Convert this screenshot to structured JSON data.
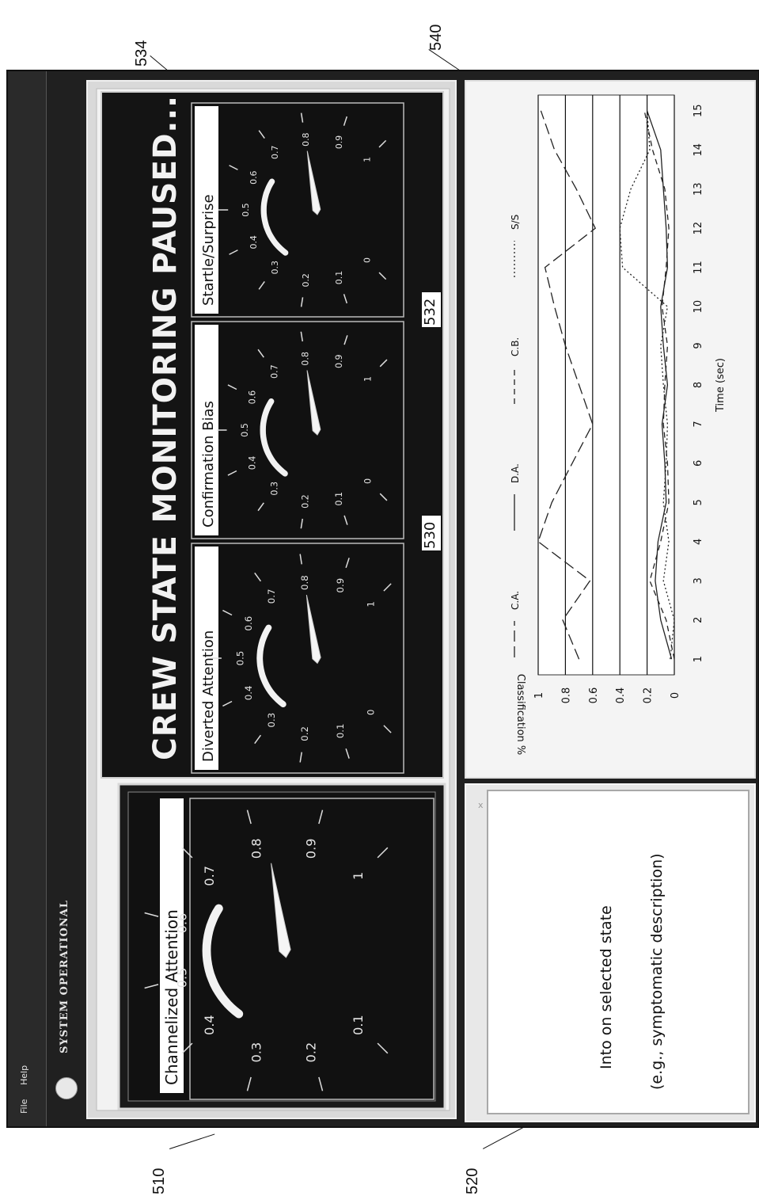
{
  "menu": {
    "file": "File",
    "help": "Help"
  },
  "system_status": "SYSTEM OPERATIONAL",
  "banner": "CREW STATE MONITORING PAUSED...",
  "close_glyph": "x",
  "main_gauge": {
    "title": "Channelized Attention",
    "ticks": [
      "0.1",
      "0.2",
      "0.3",
      "0.4",
      "0.5",
      "0.6",
      "0.7",
      "0.8",
      "0.9",
      "1"
    ],
    "value": 0.8
  },
  "gauges": [
    {
      "title": "Diverted Attention",
      "ticks": [
        "0",
        "0.1",
        "0.2",
        "0.3",
        "0.4",
        "0.5",
        "0.6",
        "0.7",
        "0.8",
        "0.9",
        "1"
      ],
      "value": 0.8
    },
    {
      "title": "Confirmation Bias",
      "ticks": [
        "0",
        "0.1",
        "0.2",
        "0.3",
        "0.4",
        "0.5",
        "0.6",
        "0.7",
        "0.8",
        "0.9",
        "1"
      ],
      "value": 0.8
    },
    {
      "title": "Startle/Surprise",
      "ticks": [
        "0",
        "0.1",
        "0.2",
        "0.3",
        "0.4",
        "0.5",
        "0.6",
        "0.7",
        "0.8",
        "0.9",
        "1"
      ],
      "value": 0.8
    }
  ],
  "info_panel": {
    "line1": "Into on selected state",
    "line2": "(e.g., symptomatic description)"
  },
  "reference_labels": {
    "r510": "510",
    "r520": "520",
    "r530": "530",
    "r532": "532",
    "r534": "534",
    "r540": "540"
  },
  "chart_data": {
    "type": "line",
    "xlabel": "Time (sec)",
    "ylabel": "Classification %",
    "x": [
      1,
      2,
      3,
      4,
      5,
      6,
      7,
      8,
      9,
      10,
      11,
      12,
      13,
      14,
      15
    ],
    "xlim": [
      0.6,
      15.4
    ],
    "ylim": [
      0,
      1
    ],
    "y_ticks": [
      "0",
      "0.2",
      "0.4",
      "0.6",
      "0.8",
      "1"
    ],
    "x_ticks": [
      "1",
      "2",
      "3",
      "4",
      "5",
      "6",
      "7",
      "8",
      "9",
      "10",
      "11",
      "12",
      "13",
      "14",
      "15"
    ],
    "grid": true,
    "legend_position": "top",
    "series": [
      {
        "name": "C.A.",
        "dash": "long",
        "values": [
          0.7,
          0.82,
          0.62,
          1.0,
          0.9,
          0.75,
          0.6,
          0.7,
          0.8,
          0.88,
          0.95,
          0.58,
          0.72,
          0.88,
          0.98
        ]
      },
      {
        "name": "D.A.",
        "dash": "solid",
        "values": [
          0.02,
          0.1,
          0.14,
          0.12,
          0.06,
          0.07,
          0.09,
          0.05,
          0.08,
          0.1,
          0.05,
          0.06,
          0.08,
          0.1,
          0.2
        ]
      },
      {
        "name": "C.B.",
        "dash": "medium",
        "values": [
          0.0,
          0.06,
          0.18,
          0.1,
          0.04,
          0.05,
          0.08,
          0.07,
          0.05,
          0.09,
          0.06,
          0.04,
          0.07,
          0.16,
          0.22
        ]
      },
      {
        "name": "S/S",
        "dash": "dotted",
        "values": [
          0.03,
          0.0,
          0.08,
          0.04,
          0.08,
          0.06,
          0.05,
          0.08,
          0.1,
          0.05,
          0.38,
          0.4,
          0.32,
          0.18,
          0.2
        ]
      }
    ]
  }
}
